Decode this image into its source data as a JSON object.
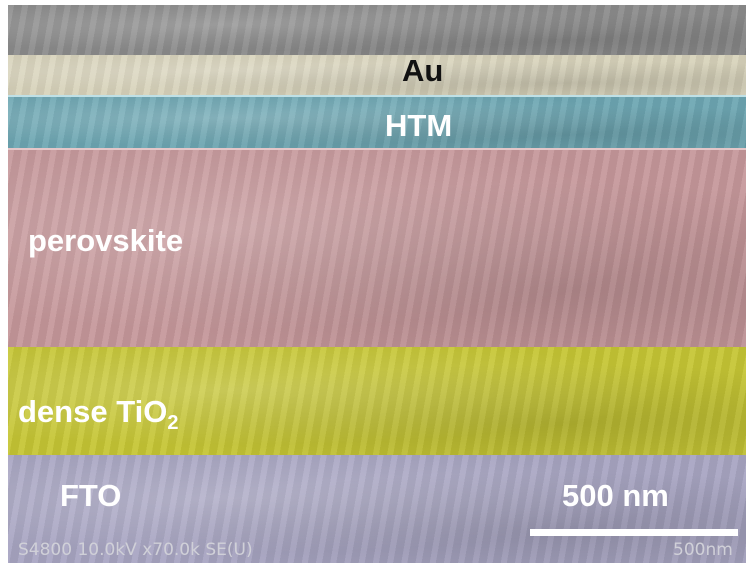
{
  "layers": [
    {
      "label": "Au"
    },
    {
      "label": "HTM"
    },
    {
      "label": "perovskite"
    },
    {
      "label": "dense TiO",
      "subscript": "2"
    },
    {
      "label": "FTO"
    }
  ],
  "scale_bar": {
    "label": "500 nm"
  },
  "footer": {
    "instrument": "S4800 10.0kV x70.0k SE(U)",
    "scale": "500nm"
  }
}
